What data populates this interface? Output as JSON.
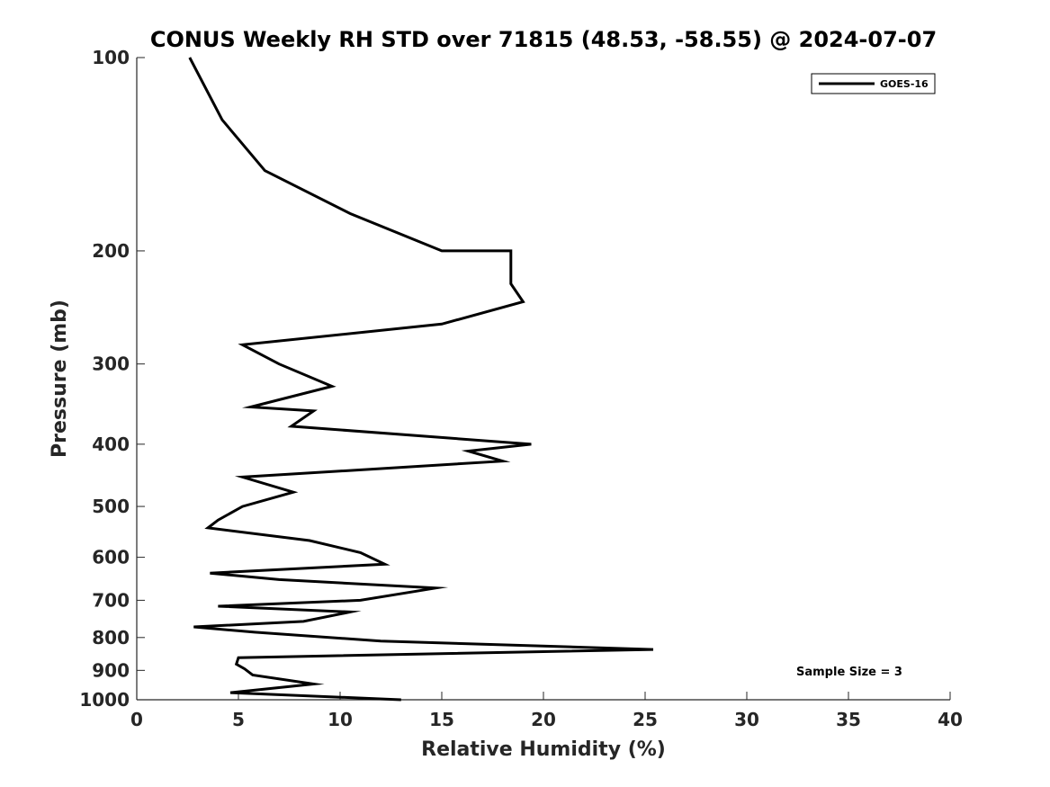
{
  "chart_data": {
    "type": "line",
    "title": "CONUS Weekly RH STD over 71815 (48.53, -58.55) @ 2024-07-07",
    "xlabel": "Relative Humidity (%)",
    "ylabel": "Pressure (mb)",
    "xlim": [
      0,
      40
    ],
    "ylim": [
      100,
      1000
    ],
    "yscale": "log",
    "y_reversed": true,
    "xticks": [
      0,
      5,
      10,
      15,
      20,
      25,
      30,
      35,
      40
    ],
    "yticks": [
      100,
      200,
      300,
      400,
      500,
      600,
      700,
      800,
      900,
      1000
    ],
    "legend_position": "top-right",
    "annotation": "Sample Size = 3",
    "series": [
      {
        "name": "GOES-16",
        "color": "#000000",
        "points": [
          [
            2.6,
            100
          ],
          [
            4.2,
            125
          ],
          [
            6.3,
            150
          ],
          [
            10.5,
            175
          ],
          [
            15.0,
            200
          ],
          [
            18.4,
            200
          ],
          [
            18.4,
            225
          ],
          [
            19.0,
            240
          ],
          [
            15.0,
            260
          ],
          [
            5.2,
            280
          ],
          [
            7.0,
            300
          ],
          [
            9.6,
            325
          ],
          [
            5.6,
            350
          ],
          [
            8.7,
            355
          ],
          [
            7.6,
            375
          ],
          [
            19.4,
            400
          ],
          [
            16.3,
            410
          ],
          [
            18.0,
            425
          ],
          [
            5.2,
            450
          ],
          [
            7.7,
            475
          ],
          [
            5.2,
            500
          ],
          [
            4.0,
            525
          ],
          [
            3.5,
            540
          ],
          [
            8.5,
            565
          ],
          [
            11.0,
            590
          ],
          [
            12.2,
            615
          ],
          [
            3.6,
            635
          ],
          [
            7.0,
            650
          ],
          [
            14.7,
            670
          ],
          [
            11.0,
            700
          ],
          [
            4.0,
            715
          ],
          [
            10.5,
            730
          ],
          [
            8.2,
            755
          ],
          [
            2.8,
            770
          ],
          [
            5.8,
            785
          ],
          [
            12.0,
            810
          ],
          [
            25.4,
            835
          ],
          [
            5.0,
            860
          ],
          [
            4.9,
            880
          ],
          [
            5.3,
            895
          ],
          [
            5.7,
            915
          ],
          [
            8.7,
            945
          ],
          [
            4.6,
            975
          ],
          [
            13.0,
            1000
          ]
        ]
      }
    ]
  }
}
